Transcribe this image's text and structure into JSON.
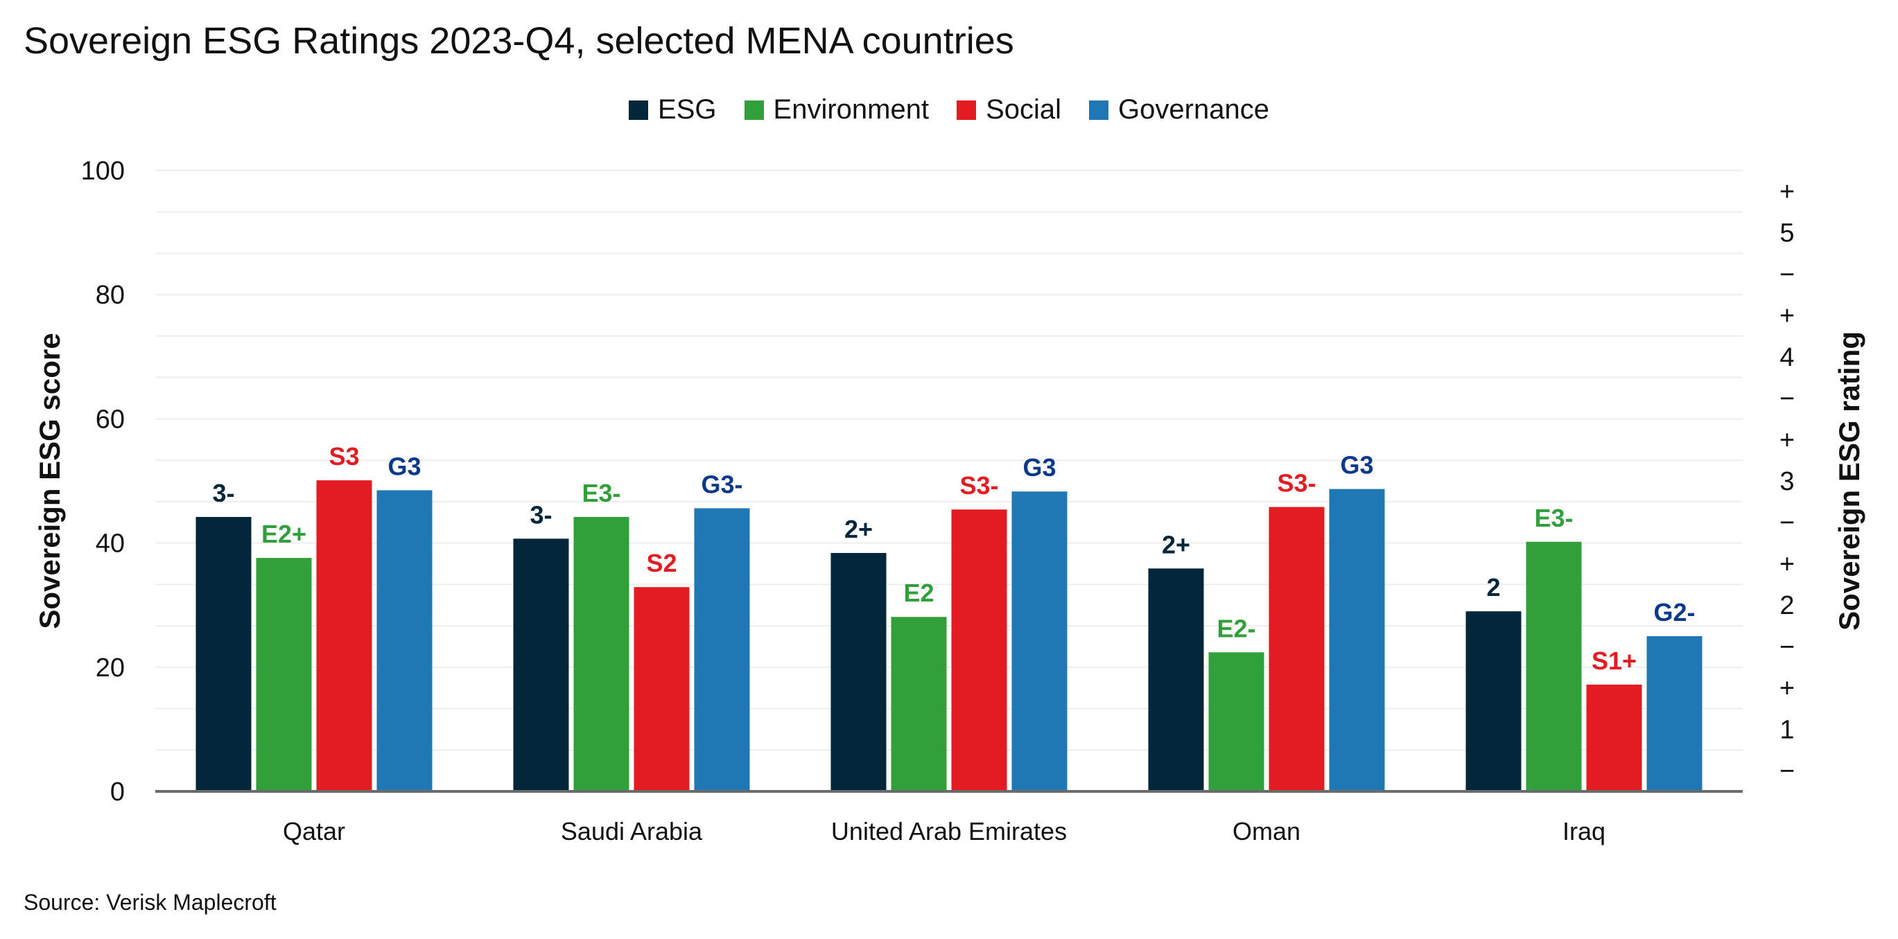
{
  "title": "Sovereign ESG Ratings 2023-Q4, selected MENA countries",
  "source": "Source: Verisk Maplecroft",
  "chart_data": {
    "type": "bar",
    "title": "Sovereign ESG Ratings 2023-Q4, selected MENA countries",
    "categories": [
      "Qatar",
      "Saudi Arabia",
      "United Arab Emirates",
      "Oman",
      "Iraq"
    ],
    "ylabel": "Sovereign ESG score",
    "y2label": "Sovereign ESG rating",
    "ylim": [
      0,
      100
    ],
    "yticks": [
      "0",
      "20",
      "40",
      "60",
      "80",
      "100"
    ],
    "y2ticks": [
      "−",
      "1",
      "+",
      "−",
      "2",
      "+",
      "−",
      "3",
      "+",
      "−",
      "4",
      "+",
      "−",
      "5",
      "+"
    ],
    "grid": true,
    "legend_position": "top-center",
    "series": [
      {
        "name": "ESG",
        "color": "#03263b",
        "label_color": "#03263b",
        "values": [
          44.2,
          40.7,
          38.4,
          35.9,
          29.0
        ],
        "labels": [
          "3-",
          "3-",
          "2+",
          "2+",
          "2"
        ]
      },
      {
        "name": "Environment",
        "color": "#32a03a",
        "label_color": "#32a03a",
        "values": [
          37.6,
          44.2,
          28.1,
          22.4,
          40.2
        ],
        "labels": [
          "E2+",
          "E3-",
          "E2",
          "E2-",
          "E3-"
        ]
      },
      {
        "name": "Social",
        "color": "#e31b22",
        "label_color": "#e31b22",
        "values": [
          50.1,
          32.9,
          45.4,
          45.8,
          17.2
        ],
        "labels": [
          "S3",
          "S2",
          "S3-",
          "S3-",
          "S1+"
        ]
      },
      {
        "name": "Governance",
        "color": "#1f78b4",
        "label_color": "#0b3a8c",
        "values": [
          48.5,
          45.6,
          48.3,
          48.7,
          25.0
        ],
        "labels": [
          "G3",
          "G3-",
          "G3",
          "G3",
          "G2-"
        ]
      }
    ]
  }
}
